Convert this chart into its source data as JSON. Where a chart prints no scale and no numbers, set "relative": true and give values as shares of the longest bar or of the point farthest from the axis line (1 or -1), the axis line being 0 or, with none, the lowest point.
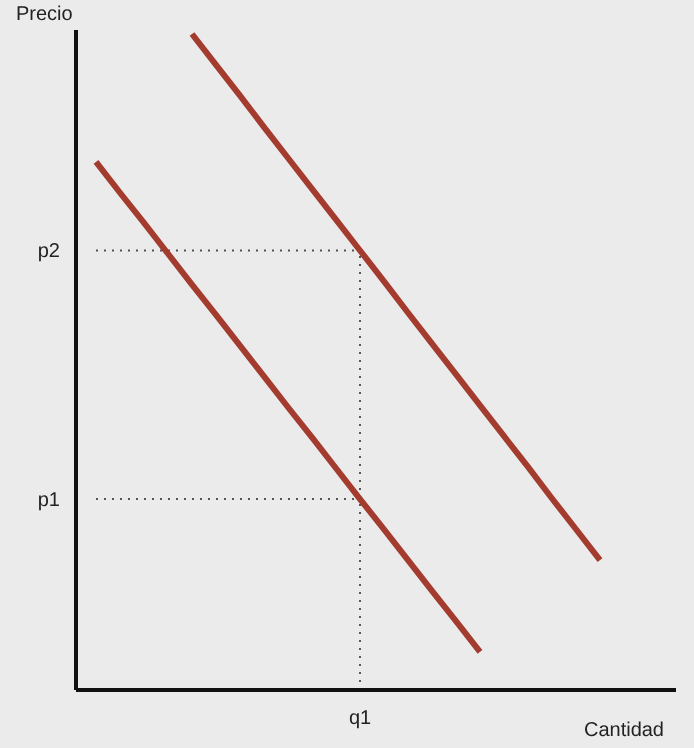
{
  "chart_data": {
    "type": "line",
    "xlabel": "Cantidad",
    "ylabel": "Precio",
    "relative": true,
    "categories": [
      null,
      null,
      null,
      null,
      null,
      null,
      null,
      null,
      null,
      null,
      null,
      null,
      null,
      null,
      null,
      null,
      null,
      null,
      null,
      null,
      null,
      null
    ],
    "series": [
      {
        "color": "#a33b2e",
        "values": [
          0.805,
          0.758,
          0.712,
          0.665,
          0.618,
          0.572,
          0.525,
          0.478,
          0.431,
          0.385,
          0.338,
          0.291,
          0.245,
          0.198,
          0.151,
          0.105,
          0.058,
          null,
          null,
          null,
          null,
          null
        ]
      },
      {
        "color": "#a33b2e",
        "values": [
          null,
          null,
          null,
          null,
          1,
          0.953,
          0.906,
          0.858,
          0.811,
          0.764,
          0.717,
          0.67,
          0.623,
          0.575,
          0.528,
          0.481,
          0.434,
          0.387,
          0.34,
          0.292,
          0.245,
          0.198
        ]
      }
    ],
    "ref_lines": [
      {
        "axis": "y",
        "value": 0.67,
        "label": "p2",
        "line_style": "dotted",
        "color": "#555555"
      },
      {
        "axis": "y",
        "value": 0.291,
        "label": "p1",
        "line_style": "dotted",
        "color": "#555555"
      }
    ],
    "annotations": [
      "q1"
    ],
    "marker": "none",
    "line_style": "solid"
  }
}
